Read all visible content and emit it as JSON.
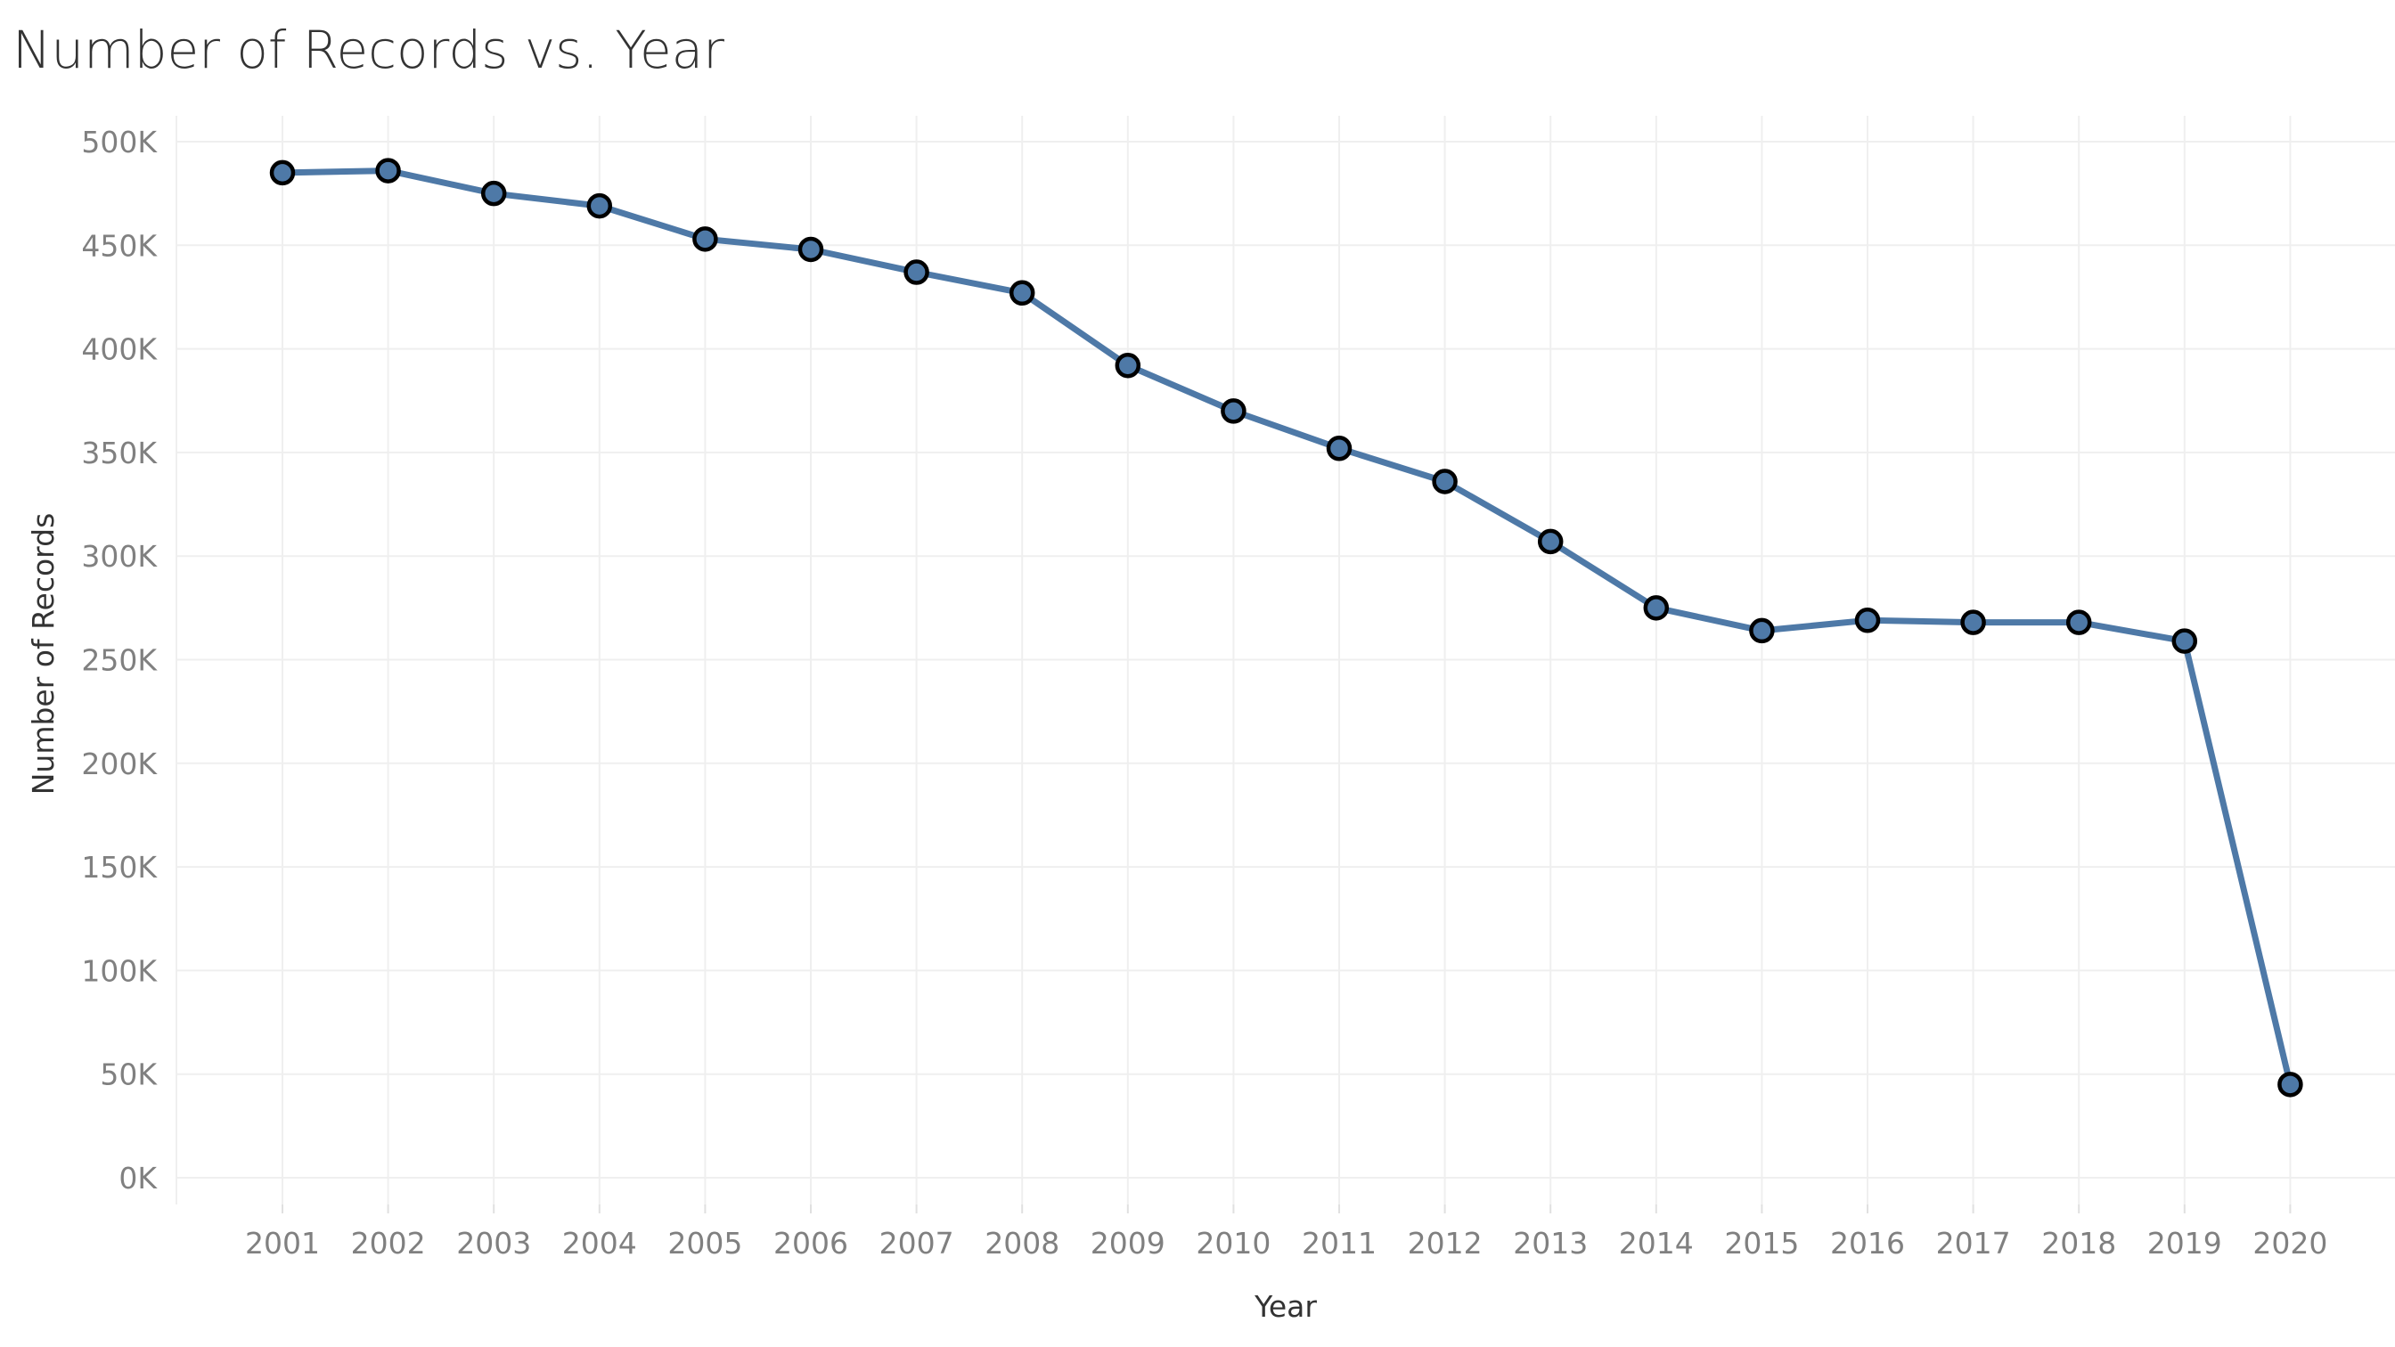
{
  "chart_data": {
    "type": "line",
    "title": "Number of Records vs. Year",
    "xlabel": "Year",
    "ylabel": "Number of Records",
    "x": [
      2001,
      2002,
      2003,
      2004,
      2005,
      2006,
      2007,
      2008,
      2009,
      2010,
      2011,
      2012,
      2013,
      2014,
      2015,
      2016,
      2017,
      2018,
      2019,
      2020
    ],
    "series": [
      {
        "values": [
          485000,
          486000,
          475000,
          469000,
          453000,
          448000,
          437000,
          427000,
          392000,
          370000,
          352000,
          336000,
          307000,
          275000,
          264000,
          269000,
          268000,
          268000,
          259000,
          45000
        ]
      }
    ],
    "ylim": [
      0,
      500000
    ],
    "yticks": [
      0,
      50000,
      100000,
      150000,
      200000,
      250000,
      300000,
      350000,
      400000,
      450000,
      500000
    ],
    "ytick_labels": [
      "0K",
      "50K",
      "100K",
      "150K",
      "200K",
      "250K",
      "300K",
      "350K",
      "400K",
      "450K",
      "500K"
    ],
    "xtick_labels": [
      "2001",
      "2002",
      "2003",
      "2004",
      "2005",
      "2006",
      "2007",
      "2008",
      "2009",
      "2010",
      "2011",
      "2012",
      "2013",
      "2014",
      "2015",
      "2016",
      "2017",
      "2018",
      "2019",
      "2020"
    ],
    "grid": true,
    "legend": "none",
    "colors": {
      "line": "#4E79A7",
      "marker_fill": "#4E79A7",
      "marker_stroke": "#000000",
      "grid": "#EFEFEF",
      "tick_text": "#808080",
      "title_text": "#333333"
    }
  }
}
